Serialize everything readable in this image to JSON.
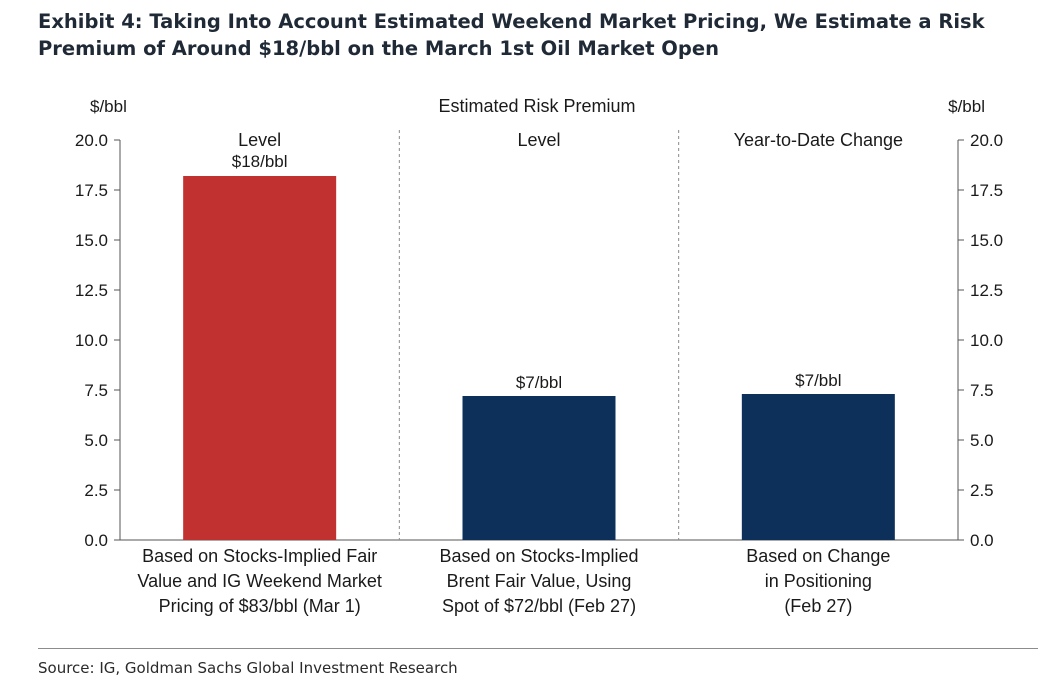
{
  "title": {
    "line1": "Exhibit 4: Taking Into Account Estimated Weekend Market Pricing, We Estimate a Risk",
    "line2": "Premium of Around $18/bbl on the March 1st Oil Market Open"
  },
  "source": "Source: IG, Goldman Sachs Global Investment Research",
  "colors": {
    "red": "#c0312f",
    "navy": "#0c3059",
    "axis": "#555555",
    "divider": "#8a8a8a"
  },
  "chart_data": {
    "type": "bar",
    "title": "Estimated Risk Premium",
    "ylabel_left": "$/bbl",
    "ylabel_right": "$/bbl",
    "ylim": [
      0,
      20
    ],
    "yticks": [
      "0.0",
      "2.5",
      "5.0",
      "7.5",
      "10.0",
      "12.5",
      "15.0",
      "17.5",
      "20.0"
    ],
    "grid": false,
    "panel_headers": [
      "Level",
      "Level",
      "Year-to-Date Change"
    ],
    "categories": [
      [
        "Based on Stocks-Implied Fair",
        "Value and IG Weekend Market",
        "Pricing of $83/bbl (Mar 1)"
      ],
      [
        "Based on Stocks-Implied",
        "Brent Fair Value, Using",
        "Spot of $72/bbl (Feb 27)"
      ],
      [
        "Based on Change",
        "in Positioning",
        "(Feb 27)"
      ]
    ],
    "values": [
      18.2,
      7.2,
      7.3
    ],
    "data_labels": [
      "$18/bbl",
      "$7/bbl",
      "$7/bbl"
    ],
    "bar_colors": [
      "#c0312f",
      "#0c3059",
      "#0c3059"
    ]
  }
}
